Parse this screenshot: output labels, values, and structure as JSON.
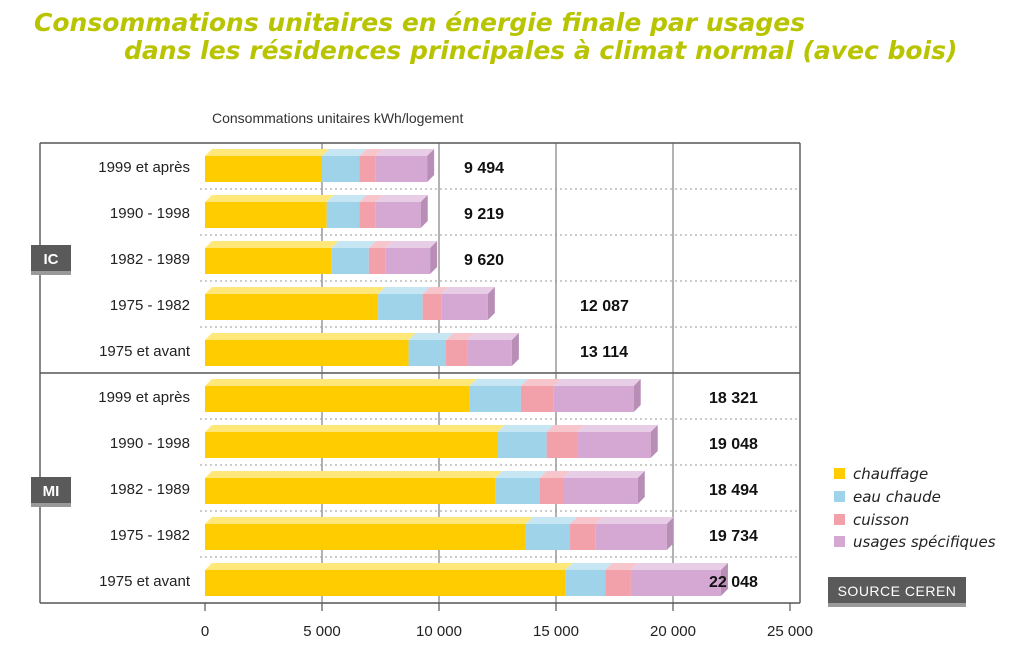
{
  "title": {
    "line1": "Consommations unitaires en énergie finale par usages",
    "line2": "dans les résidences principales à climat normal (avec bois)"
  },
  "source": "SOURCE CEREN",
  "colors": {
    "chauffage": "#ffcc00",
    "eau_chaude": "#9fd3ea",
    "cuisson": "#f2a1ab",
    "usages_specifiques": "#d4a8d2",
    "badge": "#5a5a5a",
    "title": "#b9c400"
  },
  "chart_data": {
    "type": "bar",
    "orientation": "horizontal",
    "stacked": true,
    "title": "Consommations unitaires en énergie finale par usages dans les résidences principales à climat normal (avec bois)",
    "xlabel": "Consommations unitaires kWh/logement",
    "ylabel": "",
    "xlim": [
      0,
      25000
    ],
    "xticks": [
      0,
      5000,
      10000,
      15000,
      20000,
      25000
    ],
    "xtick_labels": [
      "0",
      "5 000",
      "10 000",
      "15 000",
      "20 000",
      "25 000"
    ],
    "legend_position": "right",
    "groups": [
      {
        "label": "IC",
        "categories": [
          "1999 et après",
          "1990 - 1998",
          "1982 - 1989",
          "1975 - 1982",
          "1975 et avant"
        ],
        "totals": [
          9494,
          9219,
          9620,
          12087,
          13114
        ],
        "total_labels": [
          "9 494",
          "9 219",
          "9 620",
          "12 087",
          "13 114"
        ]
      },
      {
        "label": "MI",
        "categories": [
          "1999 et après",
          "1990 - 1998",
          "1982 - 1989",
          "1975 - 1982",
          "1975 et avant"
        ],
        "totals": [
          18321,
          19048,
          18494,
          19734,
          22048
        ],
        "total_labels": [
          "18 321",
          "19 048",
          "18 494",
          "19 734",
          "22 048"
        ]
      }
    ],
    "series": [
      {
        "name": "chauffage",
        "values": [
          5000,
          5200,
          5400,
          7400,
          8700,
          11300,
          12500,
          12400,
          13700,
          15400
        ]
      },
      {
        "name": "eau chaude",
        "values": [
          1600,
          1400,
          1600,
          1900,
          1600,
          2200,
          2100,
          1900,
          1900,
          1700
        ]
      },
      {
        "name": "cuisson",
        "values": [
          700,
          700,
          700,
          800,
          900,
          1400,
          1300,
          1000,
          1100,
          1100
        ]
      },
      {
        "name": "usages spécifiques",
        "values": [
          2194,
          1919,
          1920,
          1987,
          1914,
          3421,
          3148,
          3194,
          3034,
          3848
        ]
      }
    ]
  }
}
